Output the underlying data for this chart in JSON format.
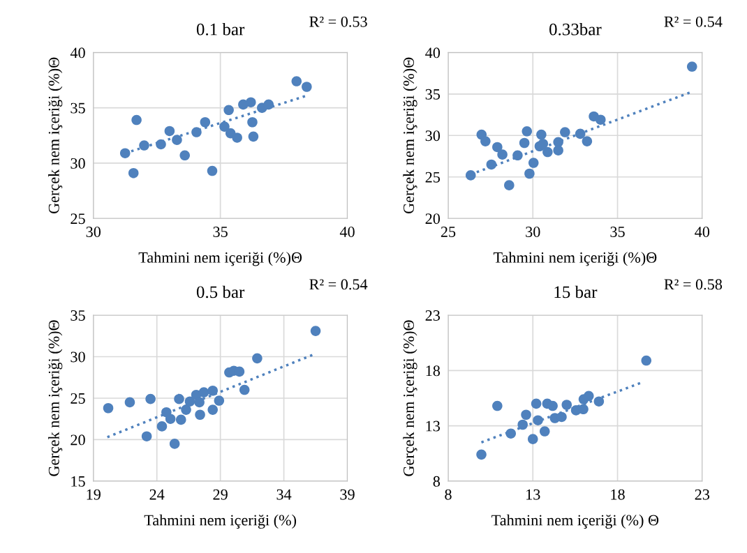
{
  "chart_data": [
    {
      "type": "scatter",
      "title": "0.1 bar",
      "xlabel": "Tahmini nem içeriği (%)Θ",
      "ylabel": "Gerçek nem içeriği (%)Θ",
      "annotations": [
        "R² = 0.53"
      ],
      "xlim": [
        30,
        40
      ],
      "xticks": [
        30,
        35,
        40
      ],
      "ylim": [
        25,
        40
      ],
      "yticks": [
        25,
        30,
        35,
        40
      ],
      "grid": true,
      "marker": "circle",
      "series": [
        {
          "color": "#4f81bd",
          "x": [
            31.25,
            31.58,
            31.7,
            32.0,
            32.66,
            33.0,
            33.29,
            33.6,
            34.06,
            34.4,
            34.68,
            35.16,
            35.33,
            35.4,
            35.66,
            35.9,
            36.2,
            36.26,
            36.3,
            36.64,
            36.9,
            38.0,
            38.4
          ],
          "values": [
            30.9,
            29.1,
            33.9,
            31.6,
            31.7,
            32.9,
            32.1,
            30.7,
            32.8,
            33.7,
            29.3,
            33.3,
            34.8,
            32.7,
            32.3,
            35.3,
            35.5,
            33.7,
            32.4,
            35.0,
            35.3,
            37.4,
            36.9
          ]
        },
        {
          "type": "line",
          "marker": "none",
          "line_style": "dotted",
          "color": "#4f81bd",
          "x": [
            31.25,
            38.4
          ],
          "values": [
            30.9,
            36.1
          ]
        }
      ]
    },
    {
      "type": "scatter",
      "title": "0.33bar",
      "xlabel": "Tahmini nem içeriği (%)Θ",
      "ylabel": "Gerçek nem içeriği (%)Θ",
      "annotations": [
        "R² = 0.54"
      ],
      "xlim": [
        25,
        40
      ],
      "xticks": [
        25,
        30,
        35,
        40
      ],
      "ylim": [
        20,
        40
      ],
      "yticks": [
        20,
        25,
        30,
        35,
        40
      ],
      "grid": true,
      "marker": "circle",
      "series": [
        {
          "color": "#4f81bd",
          "x": [
            26.33,
            26.97,
            27.2,
            27.55,
            27.9,
            28.2,
            28.6,
            29.1,
            29.5,
            29.65,
            29.8,
            30.04,
            30.4,
            30.5,
            30.6,
            30.87,
            31.5,
            31.5,
            31.9,
            32.8,
            33.2,
            33.6,
            34.0,
            39.4
          ],
          "values": [
            25.2,
            30.1,
            29.3,
            26.5,
            28.6,
            27.7,
            24.0,
            27.6,
            29.1,
            30.5,
            25.4,
            26.7,
            28.7,
            30.1,
            29.0,
            28.0,
            29.2,
            28.2,
            30.4,
            30.2,
            29.3,
            32.3,
            31.9,
            38.3
          ]
        },
        {
          "type": "line",
          "marker": "none",
          "line_style": "dotted",
          "color": "#4f81bd",
          "x": [
            26.33,
            39.3
          ],
          "values": [
            25.3,
            35.2
          ]
        }
      ]
    },
    {
      "type": "scatter",
      "title": "0.5 bar",
      "xlabel": "Tahmini nem içeriği (%)",
      "ylabel": "Gerçek nem içeriği (%)Θ",
      "annotations": [
        "R² = 0.54"
      ],
      "xlim": [
        19,
        39
      ],
      "xticks": [
        19,
        24,
        29,
        34,
        39
      ],
      "ylim": [
        15,
        35
      ],
      "yticks": [
        15,
        20,
        25,
        30,
        35
      ],
      "grid": true,
      "marker": "circle",
      "series": [
        {
          "color": "#4f81bd",
          "x": [
            20.17,
            21.87,
            23.2,
            23.5,
            24.4,
            24.75,
            25.07,
            25.4,
            25.75,
            25.9,
            26.3,
            26.6,
            27.1,
            27.35,
            27.4,
            27.7,
            28.4,
            28.4,
            28.9,
            29.7,
            30.06,
            30.5,
            30.9,
            31.9,
            36.5
          ],
          "values": [
            23.8,
            24.5,
            20.4,
            24.9,
            21.6,
            23.3,
            22.5,
            19.5,
            24.9,
            22.4,
            23.6,
            24.6,
            25.4,
            24.5,
            23.0,
            25.7,
            25.9,
            23.6,
            24.7,
            28.1,
            28.3,
            28.2,
            26.0,
            29.8,
            33.1
          ]
        },
        {
          "type": "line",
          "marker": "none",
          "line_style": "dotted",
          "color": "#4f81bd",
          "x": [
            20.1,
            36.4
          ],
          "values": [
            20.3,
            30.3
          ]
        }
      ]
    },
    {
      "type": "scatter",
      "title": "15 bar",
      "xlabel": "Tahmini nem içeriği (%) Θ",
      "ylabel": "Gerçek nem içeriği (%)Θ",
      "annotations": [
        "R² = 0.58"
      ],
      "xlim": [
        8,
        23
      ],
      "xticks": [
        8,
        13,
        18,
        23
      ],
      "ylim": [
        8,
        23
      ],
      "yticks": [
        8,
        13,
        18,
        23
      ],
      "grid": true,
      "marker": "circle",
      "series": [
        {
          "color": "#4f81bd",
          "x": [
            9.96,
            10.9,
            11.7,
            12.4,
            12.6,
            13.0,
            13.2,
            13.3,
            13.7,
            13.85,
            14.17,
            14.3,
            14.7,
            15.0,
            15.55,
            15.98,
            16.0,
            16.3,
            16.9,
            19.7
          ],
          "values": [
            10.4,
            14.8,
            12.3,
            13.1,
            14.0,
            11.8,
            15.0,
            13.5,
            12.5,
            15.0,
            14.8,
            13.7,
            13.8,
            14.9,
            14.4,
            14.5,
            15.4,
            15.7,
            15.2,
            18.9
          ]
        },
        {
          "type": "line",
          "marker": "none",
          "line_style": "dotted",
          "color": "#4f81bd",
          "x": [
            9.96,
            19.4
          ],
          "values": [
            11.5,
            16.9
          ]
        }
      ]
    }
  ]
}
